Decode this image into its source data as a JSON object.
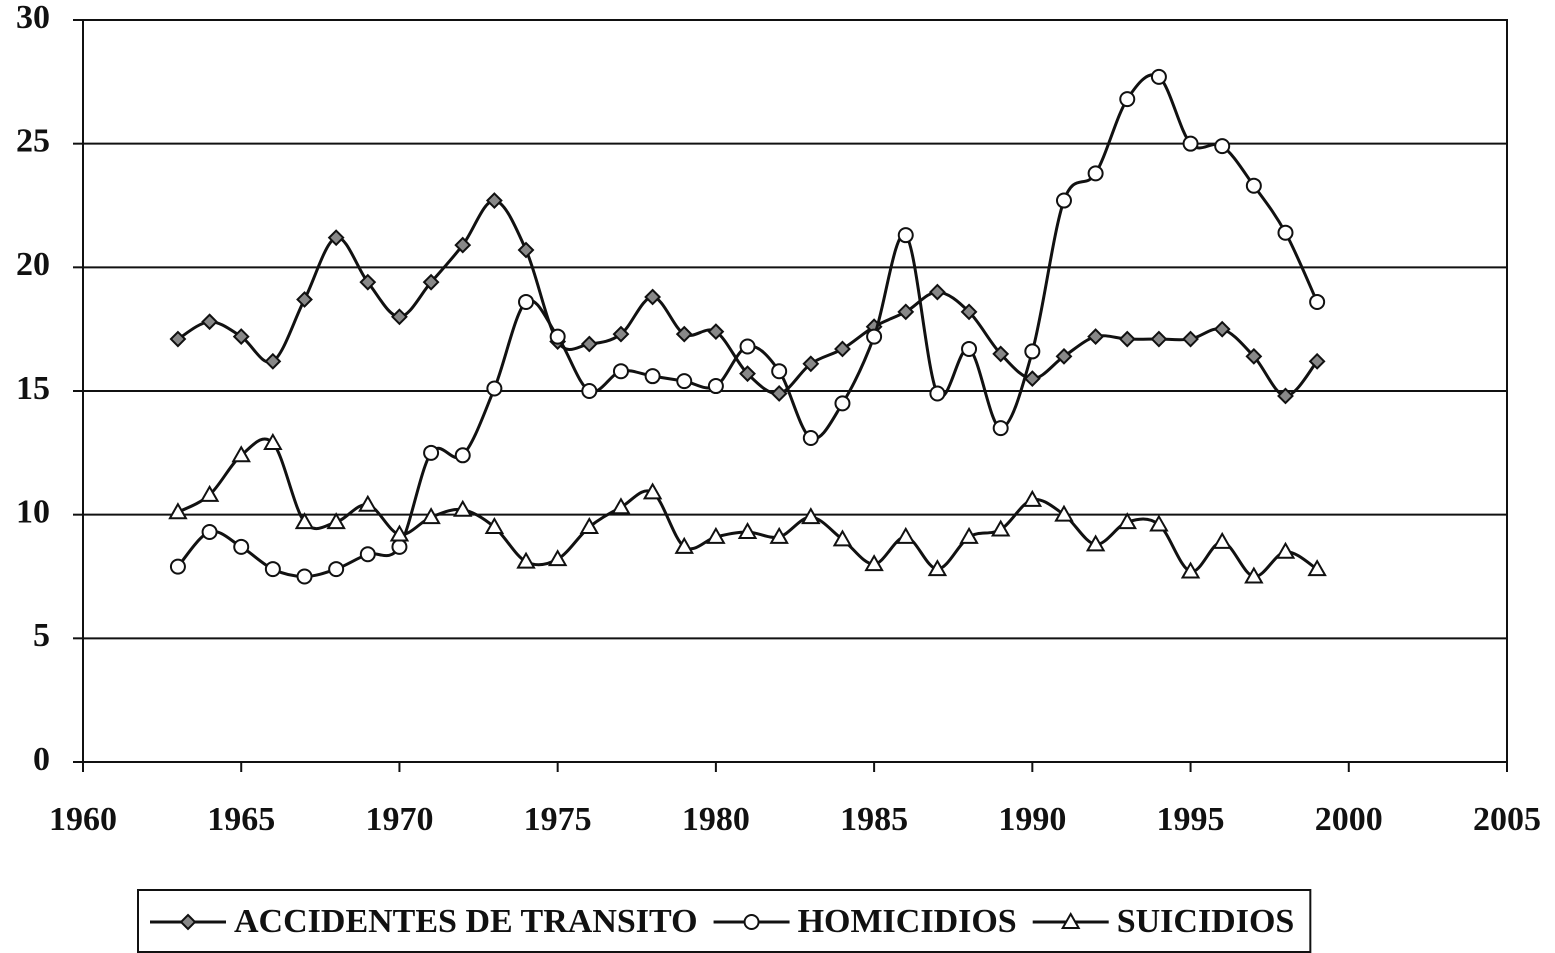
{
  "chart_data": {
    "type": "line",
    "x": [
      1963,
      1964,
      1965,
      1966,
      1967,
      1968,
      1969,
      1970,
      1971,
      1972,
      1973,
      1974,
      1975,
      1976,
      1977,
      1978,
      1979,
      1980,
      1981,
      1982,
      1983,
      1984,
      1985,
      1986,
      1987,
      1988,
      1989,
      1990,
      1991,
      1992,
      1993,
      1994,
      1995,
      1996,
      1997,
      1998,
      1999
    ],
    "series": [
      {
        "name": "ACCIDENTES DE TRANSITO",
        "color": "#111111",
        "marker": "diamond",
        "values": [
          17.1,
          17.8,
          17.2,
          16.2,
          18.7,
          21.2,
          19.4,
          18.0,
          19.4,
          20.9,
          22.7,
          20.7,
          17.0,
          16.9,
          17.3,
          18.8,
          17.3,
          17.4,
          15.7,
          14.9,
          16.1,
          16.7,
          17.6,
          18.2,
          19.0,
          18.2,
          16.5,
          15.5,
          16.4,
          17.2,
          17.1,
          17.1,
          17.1,
          17.5,
          16.4,
          14.8,
          16.2
        ]
      },
      {
        "name": "HOMICIDIOS",
        "color": "#111111",
        "marker": "circle",
        "values": [
          7.9,
          9.3,
          8.7,
          7.8,
          7.5,
          7.8,
          8.4,
          8.7,
          12.5,
          12.4,
          15.1,
          18.6,
          17.2,
          15.0,
          15.8,
          15.6,
          15.4,
          15.2,
          16.8,
          15.8,
          13.1,
          14.5,
          17.2,
          21.3,
          14.9,
          16.7,
          13.5,
          16.6,
          22.7,
          23.8,
          26.8,
          27.7,
          25.0,
          24.9,
          23.3,
          21.4,
          18.6
        ]
      },
      {
        "name": "SUICIDIOS",
        "color": "#111111",
        "marker": "triangle",
        "values": [
          10.1,
          10.8,
          12.4,
          12.9,
          9.7,
          9.7,
          10.4,
          9.2,
          9.9,
          10.2,
          9.5,
          8.1,
          8.2,
          9.5,
          10.3,
          10.9,
          8.7,
          9.1,
          9.3,
          9.1,
          9.9,
          9.0,
          8.0,
          9.1,
          7.8,
          9.1,
          9.4,
          10.6,
          10.0,
          8.8,
          9.7,
          9.6,
          7.7,
          8.9,
          7.5,
          8.5,
          7.8
        ]
      }
    ],
    "xlim": [
      1960,
      2005
    ],
    "xticks": [
      1960,
      1965,
      1970,
      1975,
      1980,
      1985,
      1990,
      1995,
      2000,
      2005
    ],
    "ylim": [
      0,
      30
    ],
    "yticks": [
      0,
      5,
      10,
      15,
      20,
      25,
      30
    ],
    "grid": true,
    "legend": "bottom"
  }
}
